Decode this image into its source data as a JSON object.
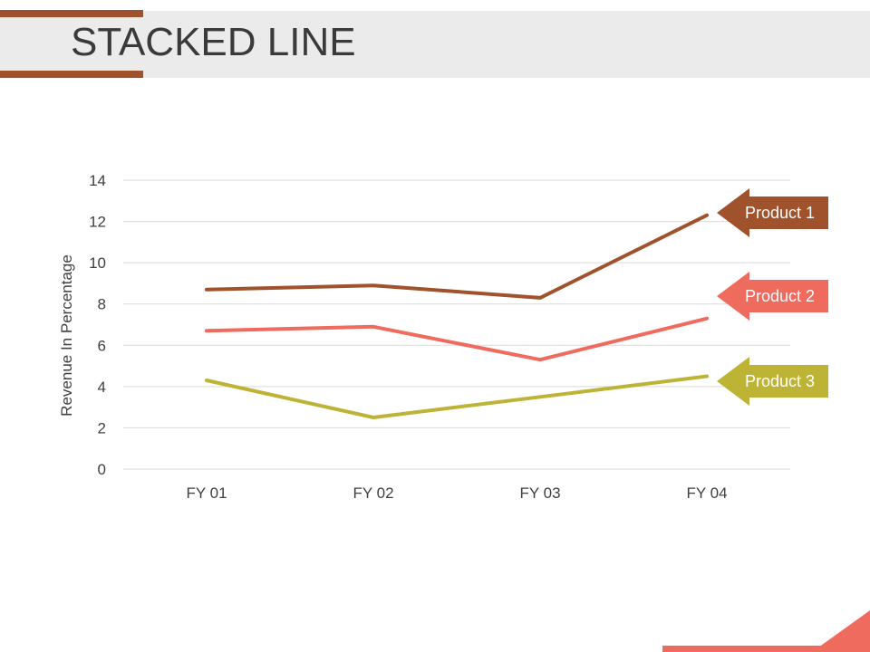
{
  "slide": {
    "title": "STACKED LINE"
  },
  "colors": {
    "accent_dark": "#a0522d",
    "accent_salmon": "#ef6b5e",
    "title_band": "#ebebeb",
    "gridline": "#d9d9d9",
    "axis_text": "#404040"
  },
  "chart_data": {
    "type": "line",
    "title": "",
    "xlabel": "",
    "ylabel": "Revenue In Percentage",
    "categories": [
      "FY 01",
      "FY 02",
      "FY 03",
      "FY 04"
    ],
    "ylim": [
      0,
      14
    ],
    "yticks": [
      "0",
      "2",
      "4",
      "6",
      "8",
      "10",
      "12",
      "14"
    ],
    "grid": true,
    "legend": "right, arrow callouts",
    "series": [
      {
        "name": "Product 1",
        "values": [
          8.7,
          8.9,
          8.3,
          12.3
        ],
        "color": "#a0522d"
      },
      {
        "name": "Product 2",
        "values": [
          6.7,
          6.9,
          5.3,
          7.3
        ],
        "color": "#ef6b5e"
      },
      {
        "name": "Product 3",
        "values": [
          4.3,
          2.5,
          3.5,
          4.5
        ],
        "color": "#bdb435"
      }
    ]
  }
}
